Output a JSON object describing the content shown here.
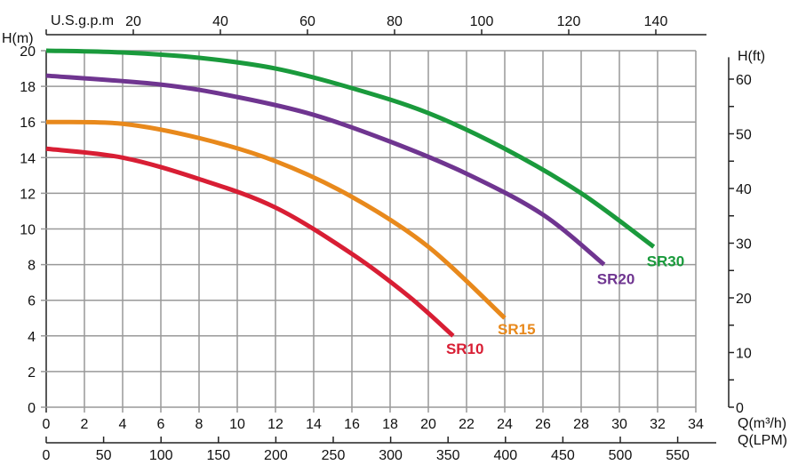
{
  "chart_data": {
    "type": "line",
    "title": "",
    "xlabel": "Q(m³/h)",
    "ylabel": "H(m)",
    "xlim": [
      0,
      34
    ],
    "ylim": [
      0,
      20
    ],
    "grid": true,
    "x_ticks": [
      0,
      2,
      4,
      6,
      8,
      10,
      12,
      14,
      16,
      18,
      20,
      22,
      24,
      26,
      28,
      30,
      32,
      34
    ],
    "y_ticks": [
      0,
      2,
      4,
      6,
      8,
      10,
      12,
      14,
      16,
      18,
      20
    ],
    "top_axis": {
      "label": "U.S.g.p.m",
      "ticks": [
        20,
        40,
        60,
        80,
        100,
        120,
        140
      ]
    },
    "right_axis": {
      "label": "H(ft)",
      "ticks": [
        0,
        10,
        20,
        30,
        40,
        50,
        60
      ]
    },
    "bottom_axis2": {
      "label": "Q(LPM)",
      "ticks": [
        0,
        50,
        100,
        150,
        200,
        250,
        300,
        350,
        400,
        450,
        500,
        550
      ]
    },
    "x_unit_label": "Q(m³/h)",
    "series": [
      {
        "name": "SR30",
        "color": "#1a9a3c",
        "points": [
          [
            0,
            20
          ],
          [
            4,
            19.9
          ],
          [
            8,
            19.6
          ],
          [
            12,
            19
          ],
          [
            16,
            17.9
          ],
          [
            20,
            16.5
          ],
          [
            24,
            14.5
          ],
          [
            28,
            12
          ],
          [
            31.8,
            9
          ]
        ]
      },
      {
        "name": "SR20",
        "color": "#6f3590",
        "points": [
          [
            0,
            18.6
          ],
          [
            6,
            18.1
          ],
          [
            10,
            17.4
          ],
          [
            14,
            16.4
          ],
          [
            18,
            14.9
          ],
          [
            22,
            13.1
          ],
          [
            26,
            10.8
          ],
          [
            29.2,
            8
          ]
        ]
      },
      {
        "name": "SR15",
        "color": "#e8891c",
        "points": [
          [
            0,
            16
          ],
          [
            4,
            15.9
          ],
          [
            8,
            15.1
          ],
          [
            12,
            13.8
          ],
          [
            16,
            11.8
          ],
          [
            20,
            9
          ],
          [
            24,
            5
          ]
        ]
      },
      {
        "name": "SR10",
        "color": "#d81e34",
        "points": [
          [
            0,
            14.5
          ],
          [
            4,
            14
          ],
          [
            8,
            12.8
          ],
          [
            12,
            11.2
          ],
          [
            16,
            8.6
          ],
          [
            19,
            6.2
          ],
          [
            21.3,
            4
          ]
        ]
      }
    ]
  }
}
